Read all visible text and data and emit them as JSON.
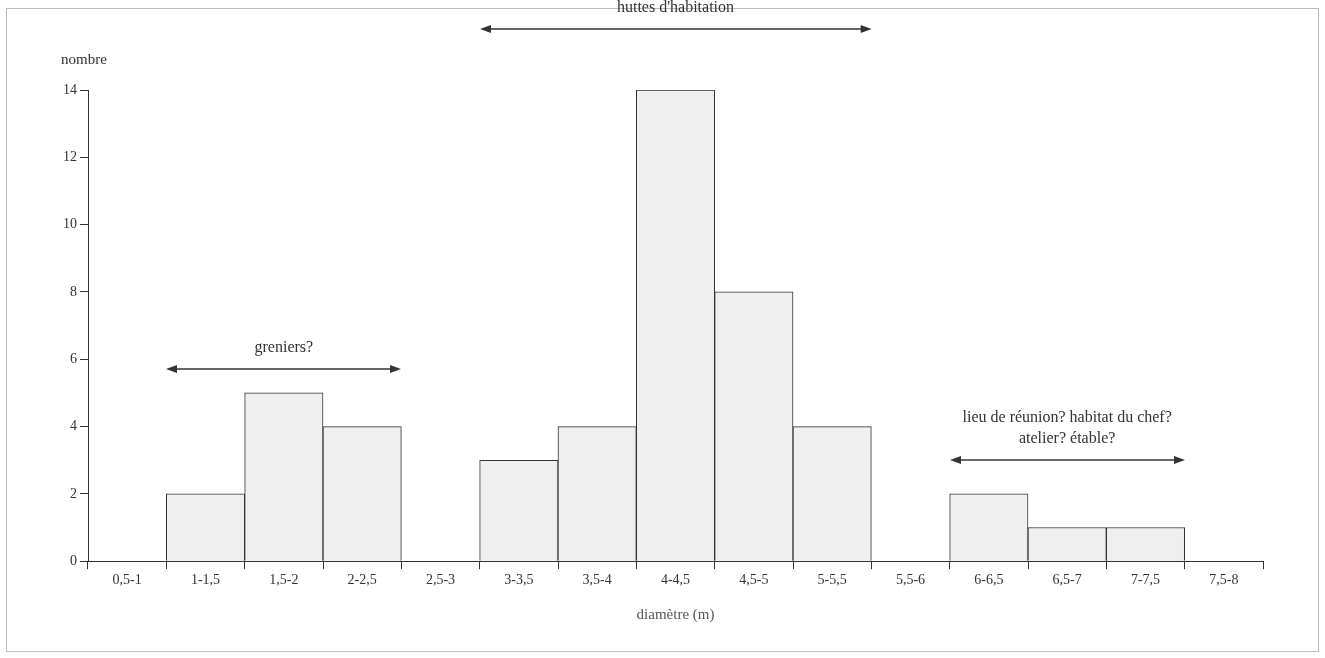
{
  "chart_data": {
    "type": "bar",
    "categories": [
      "0,5-1",
      "1-1,5",
      "1,5-2",
      "2-2,5",
      "2,5-3",
      "3-3,5",
      "3,5-4",
      "4-4,5",
      "4,5-5",
      "5-5,5",
      "5,5-6",
      "6-6,5",
      "6,5-7",
      "7-7,5",
      "7,5-8"
    ],
    "values": [
      0,
      2,
      5,
      4,
      0,
      3,
      4,
      14,
      8,
      4,
      0,
      2,
      1,
      1,
      0
    ],
    "color": "#efefef",
    "ylim": [
      0,
      14
    ],
    "yticks": [
      0,
      2,
      4,
      6,
      8,
      10,
      12,
      14
    ],
    "xlabel": "diamètre (m)",
    "ylabel": "nombre",
    "annotations": [
      "greniers?",
      "huttes d'habitation",
      "lieu de réunion? habitat du chef?\natelier? étable?"
    ],
    "grid": false,
    "legend": false
  }
}
